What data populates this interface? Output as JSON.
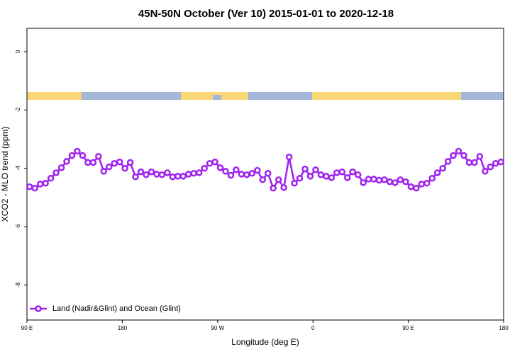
{
  "chart_data": {
    "type": "line",
    "title": "45N-50N October (Ver 10)   2015-01-01 to 2020-12-18",
    "xlabel": "Longitude (deg E)",
    "ylabel": "XCO2 - MLO trend (ppm)",
    "xlim": [
      90,
      540
    ],
    "ylim": [
      -9.2,
      0.8
    ],
    "xticks": [
      {
        "value": 90,
        "label": "90 E"
      },
      180,
      {
        "value": 270,
        "label": "90 W"
      },
      {
        "value": 360,
        "label": "0"
      },
      {
        "value": 450,
        "label": "90 E"
      },
      {
        "value": 540,
        "label": "180"
      }
    ],
    "yticks": [
      0,
      -2,
      -4,
      -6,
      -8
    ],
    "legend": "bottom-left",
    "x": [
      92.5,
      97.5,
      102.5,
      107.5,
      112.5,
      117.5,
      122.5,
      127.5,
      132.5,
      137.5,
      142.5,
      147.5,
      152.5,
      157.5,
      162.5,
      167.5,
      172.5,
      177.5,
      182.5,
      187.5,
      192.5,
      197.5,
      202.5,
      207.5,
      212.5,
      217.5,
      222.5,
      227.5,
      232.5,
      237.5,
      242.5,
      247.5,
      252.5,
      257.5,
      262.5,
      267.5,
      272.5,
      277.5,
      282.5,
      287.5,
      292.5,
      297.5,
      302.5,
      307.5,
      312.5,
      317.5,
      322.5,
      327.5,
      332.5,
      337.5,
      342.5,
      347.5,
      352.5,
      357.5,
      362.5,
      367.5,
      372.5,
      377.5,
      382.5,
      387.5,
      392.5,
      397.5,
      402.5,
      407.5,
      412.5,
      417.5,
      422.5,
      427.5,
      432.5,
      437.5,
      442.5,
      447.5,
      452.5,
      457.5,
      462.5,
      467.5,
      472.5,
      477.5,
      482.5,
      487.5,
      492.5,
      497.5,
      502.5,
      507.5,
      512.5,
      517.5,
      522.5,
      527.5,
      532.5,
      537.5
    ],
    "series": [
      {
        "name": "Land (Nadir&Glint) and Ocean (Glint)",
        "color": "#a020f0",
        "values": [
          -4.63,
          -4.68,
          -4.54,
          -4.51,
          -4.34,
          -4.15,
          -3.98,
          -3.76,
          -3.56,
          -3.41,
          -3.56,
          -3.8,
          -3.8,
          -3.59,
          -4.1,
          -3.95,
          -3.83,
          -3.78,
          -4.0,
          -3.8,
          -4.29,
          -4.12,
          -4.22,
          -4.12,
          -4.2,
          -4.22,
          -4.15,
          -4.29,
          -4.27,
          -4.27,
          -4.2,
          -4.17,
          -4.15,
          -4.0,
          -3.83,
          -3.78,
          -3.98,
          -4.1,
          -4.24,
          -4.05,
          -4.2,
          -4.22,
          -4.17,
          -4.07,
          -4.39,
          -4.17,
          -4.68,
          -4.39,
          -4.66,
          -3.61,
          -4.51,
          -4.34,
          -4.02,
          -4.27,
          -4.05,
          -4.22,
          -4.27,
          -4.32,
          -4.15,
          -4.12,
          -4.32,
          -4.12,
          -4.22,
          -4.49,
          -4.37,
          -4.37,
          -4.41,
          -4.39,
          -4.46,
          -4.49,
          -4.39,
          -4.46,
          -4.63,
          -4.68,
          -4.54,
          -4.51,
          -4.34,
          -4.15,
          -4.0,
          -3.76,
          -3.56,
          -3.41,
          -3.56,
          -3.8,
          -3.8,
          -3.59,
          -4.1,
          -3.95,
          -3.83,
          -3.78
        ]
      }
    ]
  }
}
